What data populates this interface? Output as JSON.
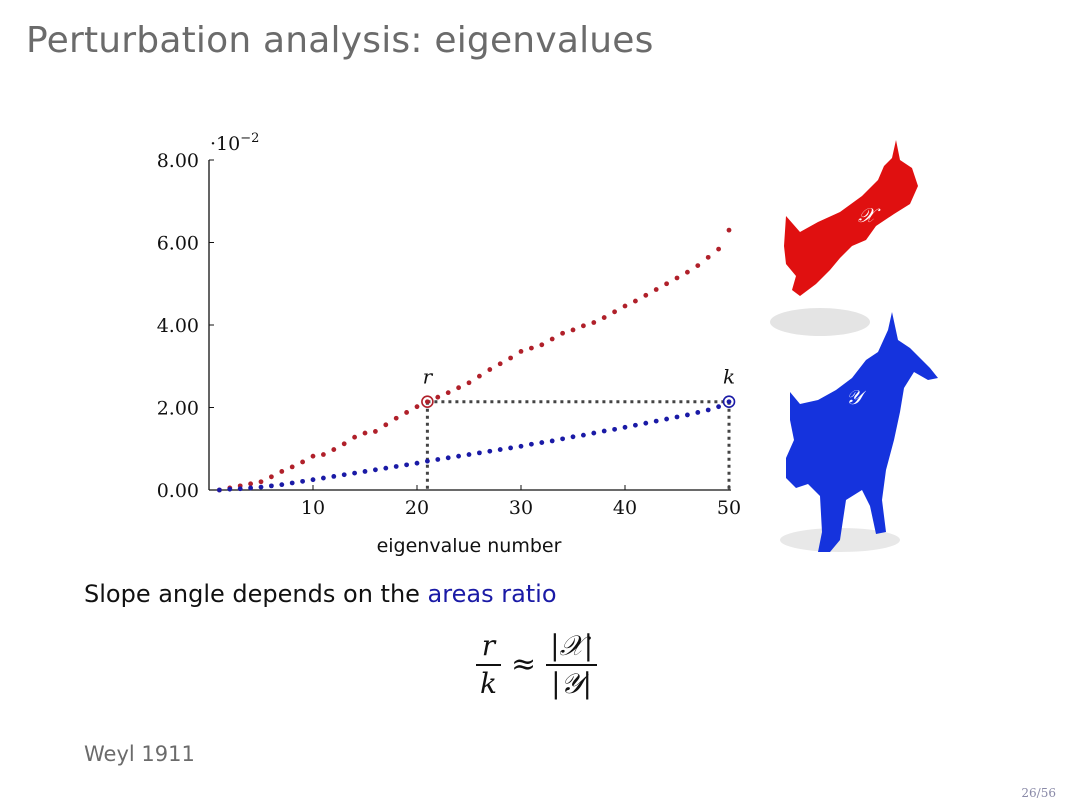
{
  "slide": {
    "title": "Perturbation analysis: eigenvalues",
    "text_before": "Slope angle depends on the ",
    "text_highlight": "areas ratio",
    "highlight_color": "#1a1aa6",
    "formula": {
      "lhs_num": "r",
      "lhs_den": "k",
      "approx": "≈",
      "rhs_num": "|𝒳|",
      "rhs_den": "|𝒴|"
    },
    "footnote": "Weyl 1911",
    "page_number": "26/56"
  },
  "figure": {
    "shape_x_label": "𝒳",
    "shape_y_label": "𝒴",
    "shape_x_color": "#e01010",
    "shape_y_color": "#1533dd"
  },
  "chart_data": {
    "type": "scatter",
    "xlabel": "eigenvalue number",
    "ylabel": "",
    "y_multiplier_label": "·10",
    "y_multiplier_exp": "−2",
    "xlim": [
      0,
      50
    ],
    "ylim": [
      0,
      8
    ],
    "x_ticks": [
      10,
      20,
      30,
      40,
      50
    ],
    "x_tick_labels": [
      "10",
      "20",
      "30",
      "40",
      "50"
    ],
    "y_ticks": [
      0,
      2,
      4,
      6,
      8
    ],
    "y_tick_labels": [
      "0.00",
      "2.00",
      "4.00",
      "6.00",
      "8.00"
    ],
    "series": [
      {
        "color": "#b0202a",
        "x": [
          1,
          2,
          3,
          4,
          5,
          6,
          7,
          8,
          9,
          10,
          11,
          12,
          13,
          14,
          15,
          16,
          17,
          18,
          19,
          20,
          21,
          22,
          23,
          24,
          25,
          26,
          27,
          28,
          29,
          30,
          31,
          32,
          33,
          34,
          35,
          36,
          37,
          38,
          39,
          40,
          41,
          42,
          43,
          44,
          45,
          46,
          47,
          48,
          49,
          50
        ],
        "values": [
          0.0,
          0.05,
          0.1,
          0.15,
          0.2,
          0.32,
          0.45,
          0.56,
          0.68,
          0.82,
          0.86,
          0.98,
          1.12,
          1.28,
          1.38,
          1.42,
          1.58,
          1.74,
          1.88,
          2.02,
          2.14,
          2.25,
          2.36,
          2.48,
          2.6,
          2.76,
          2.92,
          3.06,
          3.2,
          3.36,
          3.44,
          3.52,
          3.66,
          3.8,
          3.88,
          3.98,
          4.06,
          4.18,
          4.32,
          4.46,
          4.58,
          4.72,
          4.86,
          5.0,
          5.14,
          5.28,
          5.44,
          5.64,
          5.84,
          6.3
        ]
      },
      {
        "color": "#1a1aa6",
        "x": [
          1,
          2,
          3,
          4,
          5,
          6,
          7,
          8,
          9,
          10,
          11,
          12,
          13,
          14,
          15,
          16,
          17,
          18,
          19,
          20,
          21,
          22,
          23,
          24,
          25,
          26,
          27,
          28,
          29,
          30,
          31,
          32,
          33,
          34,
          35,
          36,
          37,
          38,
          39,
          40,
          41,
          42,
          43,
          44,
          45,
          46,
          47,
          48,
          49,
          50
        ],
        "values": [
          0.0,
          0.02,
          0.03,
          0.05,
          0.07,
          0.1,
          0.13,
          0.17,
          0.21,
          0.25,
          0.29,
          0.33,
          0.37,
          0.41,
          0.45,
          0.49,
          0.53,
          0.57,
          0.61,
          0.65,
          0.7,
          0.74,
          0.78,
          0.82,
          0.86,
          0.9,
          0.94,
          0.98,
          1.02,
          1.06,
          1.11,
          1.15,
          1.19,
          1.24,
          1.29,
          1.33,
          1.38,
          1.43,
          1.47,
          1.52,
          1.57,
          1.62,
          1.67,
          1.72,
          1.77,
          1.82,
          1.88,
          1.94,
          2.02,
          2.14
        ]
      }
    ],
    "annotations": [
      {
        "label": "r",
        "x": 21,
        "y": 2.14,
        "color": "#b0202a"
      },
      {
        "label": "k",
        "x": 50,
        "y": 2.14,
        "color": "#1a1aa6"
      }
    ]
  }
}
